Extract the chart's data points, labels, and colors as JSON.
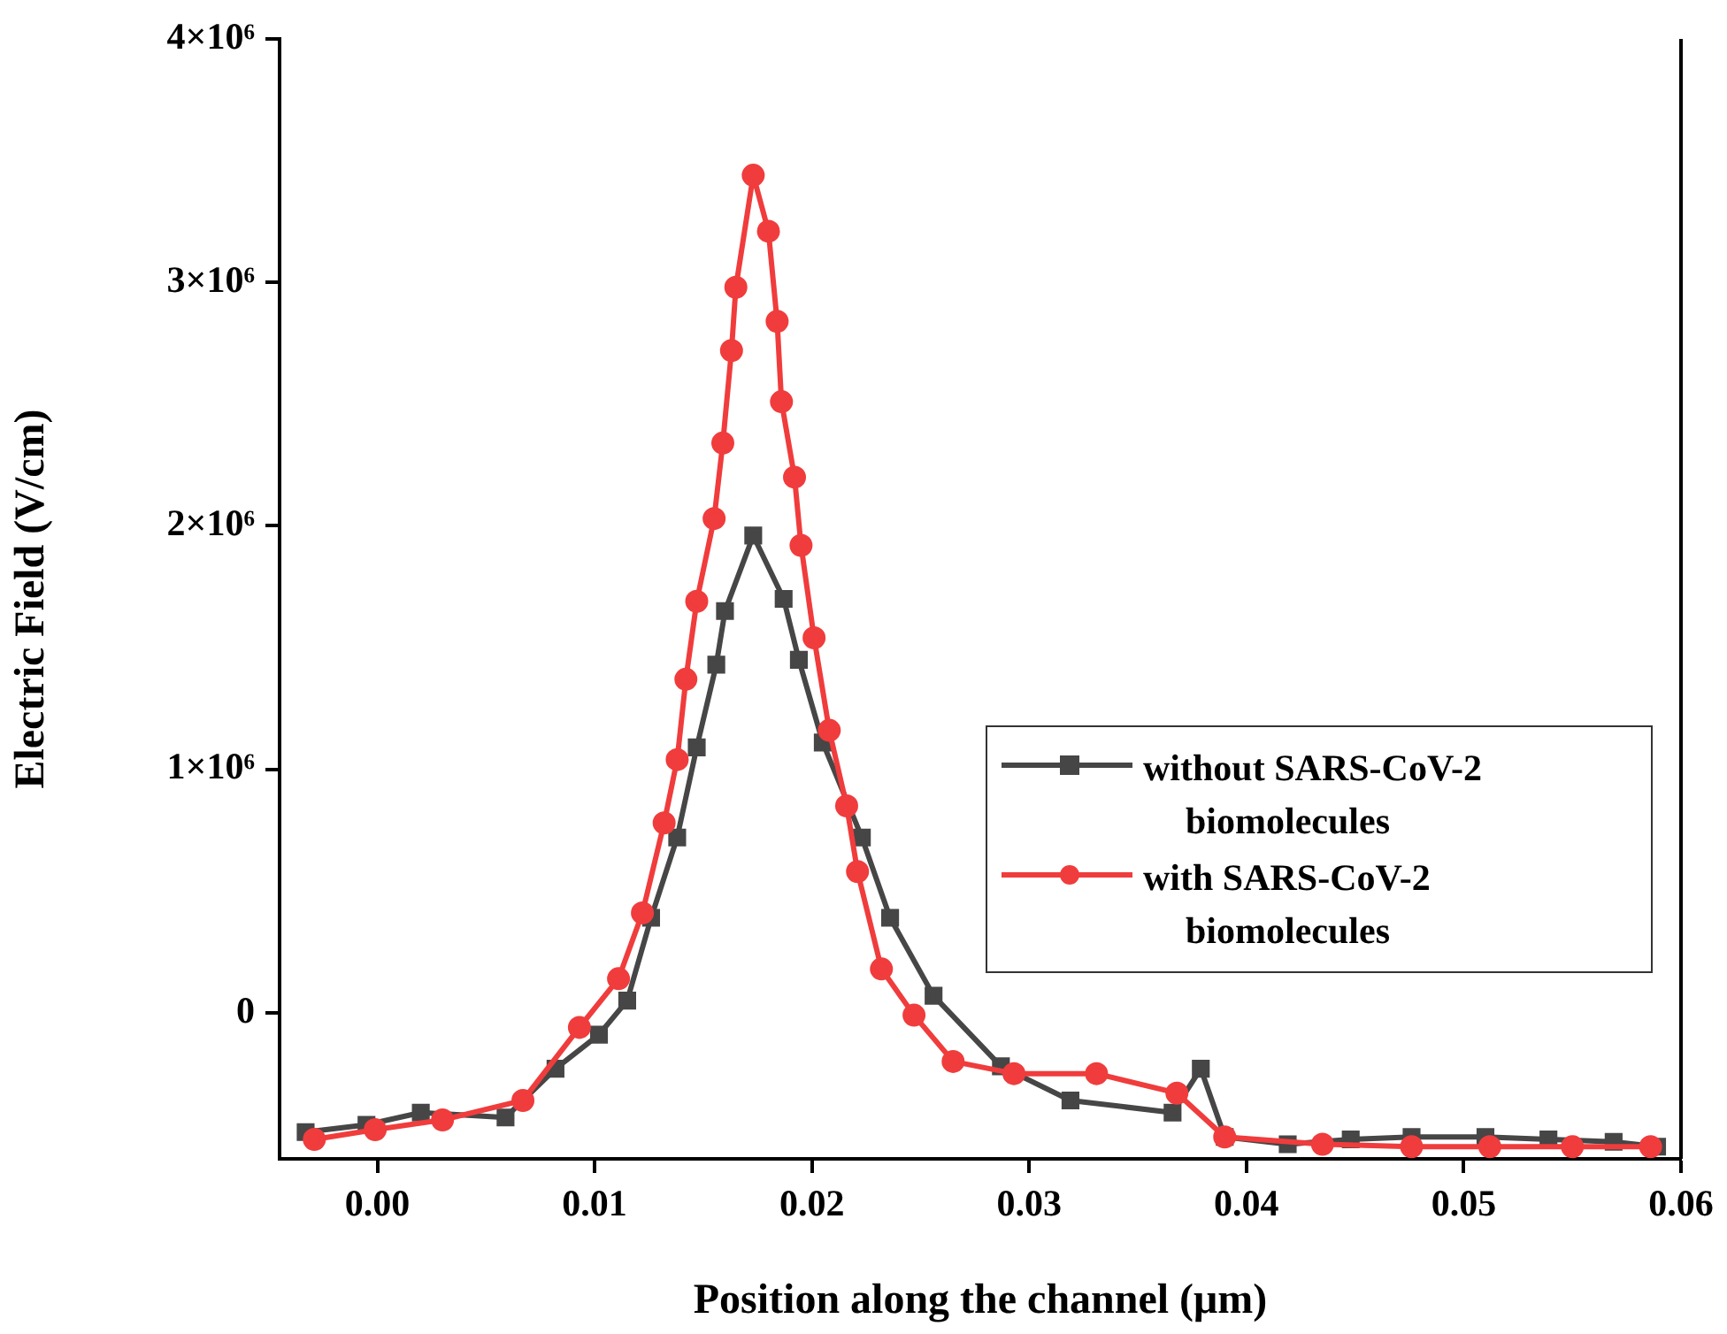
{
  "chart_data": {
    "type": "line",
    "xlabel": "Position along the channel (μm)",
    "ylabel": "Electric Field (V/cm)",
    "xlim": [
      -0.0045,
      0.06
    ],
    "ylim": [
      -600000,
      4000000
    ],
    "xticks": [
      {
        "value": 0,
        "label": "0.00"
      },
      {
        "value": 0.01,
        "label": "0.01"
      },
      {
        "value": 0.02,
        "label": "0.02"
      },
      {
        "value": 0.03,
        "label": "0.03"
      },
      {
        "value": 0.04,
        "label": "0.04"
      },
      {
        "value": 0.05,
        "label": "0.05"
      },
      {
        "value": 0.06,
        "label": "0.06"
      }
    ],
    "yticks": [
      0,
      {
        "value": 1000000,
        "label": "1×10⁶"
      },
      {
        "value": 2000000,
        "label": "2×10⁶"
      },
      {
        "value": 3000000,
        "label": "3×10⁶"
      },
      {
        "value": 4000000,
        "label": "4×10⁶"
      }
    ],
    "grid": false,
    "legend": "bottom right",
    "line_style": "solid",
    "series": [
      {
        "name": "without SARS-CoV-2 biomolecules",
        "color": "#464646",
        "marker": "square",
        "x": [
          -0.0033,
          -0.0005,
          0.002,
          0.0059,
          0.0082,
          0.0102,
          0.0115,
          0.0126,
          0.0138,
          0.0147,
          0.0156,
          0.016,
          0.0173,
          0.0187,
          0.0194,
          0.0205,
          0.0223,
          0.0236,
          0.0256,
          0.0287,
          0.0319,
          0.0366,
          0.0379,
          0.039,
          0.0419,
          0.0448,
          0.0476,
          0.051,
          0.0539,
          0.0569,
          0.0589
        ],
        "values": [
          -490000,
          -460000,
          -410000,
          -430000,
          -230000,
          -90000,
          50000,
          390000,
          720000,
          1090000,
          1430000,
          1650000,
          1960000,
          1700000,
          1450000,
          1110000,
          720000,
          390000,
          70000,
          -220000,
          -360000,
          -410000,
          -230000,
          -510000,
          -540000,
          -520000,
          -510000,
          -510000,
          -520000,
          -530000,
          -550000
        ]
      },
      {
        "name": "with SARS-CoV-2 biomolecules",
        "color": "#f03c3c",
        "marker": "circle",
        "x": [
          -0.0029,
          -0.0001,
          0.003,
          0.0067,
          0.0093,
          0.0111,
          0.0122,
          0.0132,
          0.0138,
          0.0142,
          0.0147,
          0.0155,
          0.0159,
          0.0163,
          0.0165,
          0.0173,
          0.018,
          0.0184,
          0.0186,
          0.0192,
          0.0195,
          0.0201,
          0.0208,
          0.0216,
          0.0221,
          0.0232,
          0.0247,
          0.0265,
          0.0293,
          0.0331,
          0.0368,
          0.039,
          0.0435,
          0.0476,
          0.0512,
          0.055,
          0.0586
        ],
        "values": [
          -520000,
          -480000,
          -440000,
          -360000,
          -60000,
          140000,
          410000,
          780000,
          1040000,
          1370000,
          1690000,
          2030000,
          2340000,
          2720000,
          2980000,
          3440000,
          3210000,
          2840000,
          2510000,
          2200000,
          1920000,
          1540000,
          1160000,
          850000,
          580000,
          180000,
          -10000,
          -200000,
          -250000,
          -250000,
          -330000,
          -510000,
          -540000,
          -550000,
          -550000,
          -550000,
          -550000
        ]
      }
    ]
  }
}
